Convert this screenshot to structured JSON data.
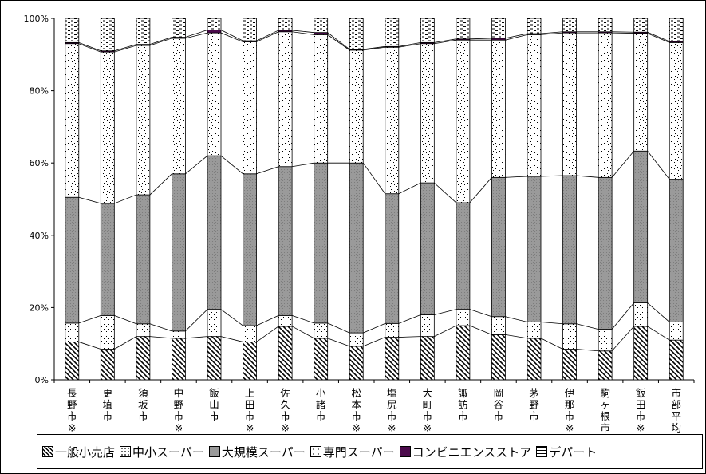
{
  "chart_data": {
    "type": "bar",
    "stacked": "percent",
    "categories": [
      "長野市※",
      "更埴市",
      "須坂市",
      "中野市※",
      "飯山市",
      "上田市※",
      "佐久市※",
      "小諸市",
      "松本市※",
      "塩尻市※",
      "大町市※",
      "諏訪市",
      "岡谷市",
      "茅野市",
      "伊那市※",
      "駒ヶ根市",
      "飯田市※",
      "市部平均"
    ],
    "series": [
      {
        "name": "一般小売店",
        "values": [
          10.5,
          8.5,
          12,
          11.5,
          12,
          10.5,
          14.8,
          11.5,
          9.3,
          11.8,
          12,
          15,
          12.5,
          11.5,
          8.5,
          8,
          14.8,
          11
        ]
      },
      {
        "name": "中小スーパー",
        "values": [
          5.2,
          9.3,
          3.5,
          2,
          7.5,
          4.5,
          3,
          4.2,
          3.7,
          3.8,
          6,
          4.5,
          5,
          4.5,
          7,
          6,
          6.5,
          5
        ]
      },
      {
        "name": "大規模スーパー",
        "values": [
          34.8,
          31,
          35.7,
          43.5,
          42.5,
          42,
          41.2,
          44.3,
          47,
          35.9,
          36.5,
          29.5,
          38.5,
          40.3,
          41,
          42,
          42,
          39.5
        ]
      },
      {
        "name": "専門スーパー",
        "values": [
          42.5,
          41.9,
          41.3,
          37.5,
          34,
          36.5,
          37.3,
          35.5,
          31.2,
          40.5,
          38.5,
          45,
          38,
          39.2,
          39.5,
          40,
          32.6,
          37.8
        ]
      },
      {
        "name": "コンビニエンスストア",
        "values": [
          0.3,
          0.3,
          0.3,
          0.3,
          0.8,
          0.3,
          0.4,
          0.6,
          0.2,
          0.2,
          0.3,
          0.3,
          0.5,
          0.3,
          0.3,
          0.3,
          0.3,
          0.3
        ]
      },
      {
        "name": "デパート",
        "values": [
          6.7,
          9.0,
          7.2,
          5.2,
          3.2,
          6.2,
          3.3,
          3.9,
          8.6,
          7.8,
          6.7,
          5.7,
          5.5,
          4.2,
          3.7,
          3.7,
          3.8,
          6.4
        ]
      }
    ],
    "y_ticks": [
      "0%",
      "20%",
      "40%",
      "60%",
      "80%",
      "100%"
    ],
    "ylim": [
      0,
      100
    ],
    "legend_position": "bottom",
    "grid": false
  },
  "colors": {
    "一般小売店": "#ffffff",
    "中小スーパー": "#ffffff",
    "大規模スーパー": "#9a9a9a",
    "専門スーパー": "#ffffff",
    "コンビニエンスストア": "#4b0a4b",
    "デパート": "#ffffff"
  }
}
